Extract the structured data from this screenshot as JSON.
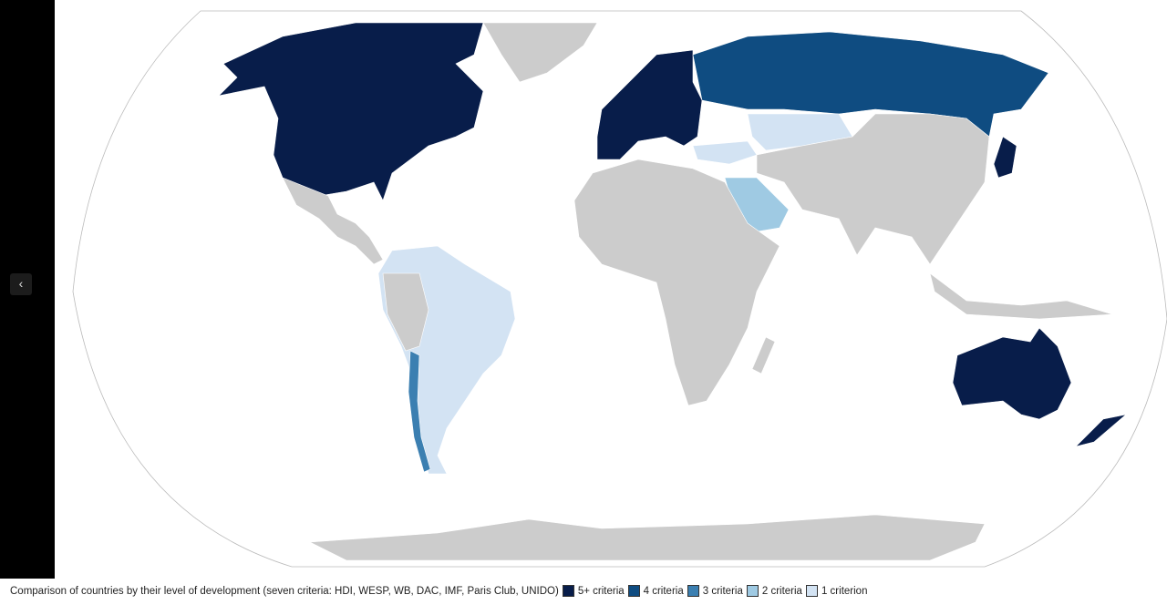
{
  "caption": "Comparison of countries by their level of development (seven criteria: HDI, WESP, WB, DAC, IMF, Paris Club, UNIDO)",
  "legend": [
    {
      "label": "5+ criteria",
      "color": "#081d4a"
    },
    {
      "label": "4 criteria",
      "color": "#0f4c81"
    },
    {
      "label": "3 criteria",
      "color": "#3b7fb1"
    },
    {
      "label": "2 criteria",
      "color": "#9fcae3"
    },
    {
      "label": "1 criterion",
      "color": "#d3e3f3"
    }
  ]
}
